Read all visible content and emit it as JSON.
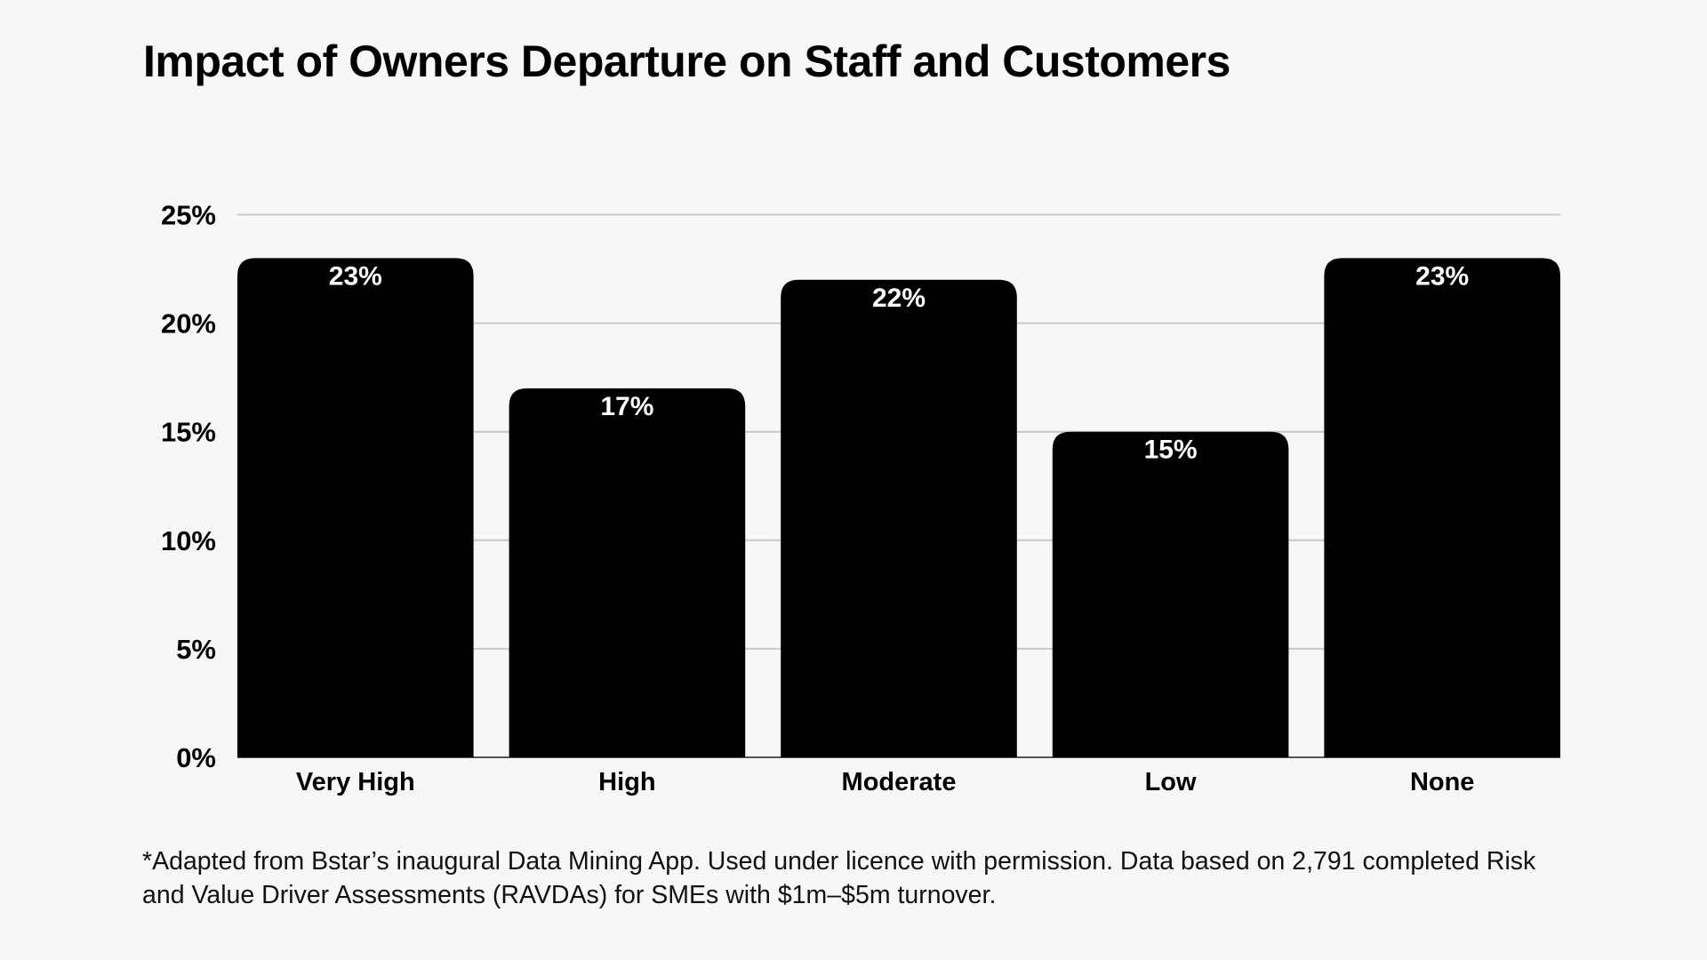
{
  "chart_data": {
    "type": "bar",
    "title": "Impact of Owners Departure on Staff and Customers",
    "xlabel": "",
    "ylabel": "",
    "categories": [
      "Very High",
      "High",
      "Moderate",
      "Low",
      "None"
    ],
    "values": [
      23,
      17,
      22,
      15,
      23
    ],
    "data_labels": [
      "23%",
      "17%",
      "22%",
      "15%",
      "23%"
    ],
    "ylim": [
      0,
      25
    ],
    "yticks": [
      0,
      5,
      10,
      15,
      20,
      25
    ],
    "ytick_labels": [
      "0%",
      "5%",
      "10%",
      "15%",
      "20%",
      "25%"
    ],
    "grid": true,
    "legend": "none",
    "colors": {
      "bar": "#000000",
      "grid": "#c8c8c8",
      "background": "#f7f7f7",
      "data_label": "#ffffff"
    }
  },
  "footnote": "*Adapted from Bstar’s inaugural Data Mining App. Used under licence with permission. Data based on 2,791 completed Risk and Value Driver Assessments (RAVDAs) for SMEs with $1m–$5m turnover."
}
